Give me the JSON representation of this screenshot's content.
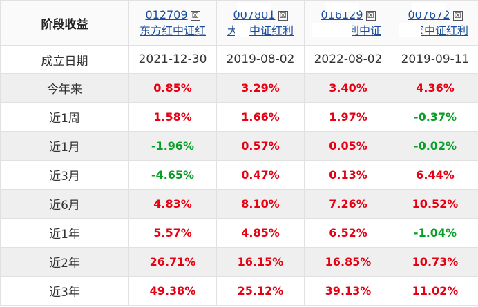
{
  "header_label": "阶段收益",
  "row_labels": {
    "founded": "成立日期",
    "ytd": "今年来",
    "w1": "近1周",
    "m1": "近1月",
    "m3": "近3月",
    "m6": "近6月",
    "y1": "近1年",
    "y2": "近2年",
    "y3": "近3年"
  },
  "funds": [
    {
      "code": "012709",
      "name": "东方红中证红",
      "close_icon": "☒",
      "founded": "2021-12-30",
      "ytd": "0.85%",
      "w1": "1.58%",
      "m1": "-1.96%",
      "m3": "-4.65%",
      "m6": "4.83%",
      "y1": "5.57%",
      "y2": "26.71%",
      "y3": "49.38%"
    },
    {
      "code": "007801",
      "name": "大成中证红利",
      "close_icon": "☒",
      "founded": "2019-08-02",
      "ytd": "3.29%",
      "w1": "1.66%",
      "m1": "0.57%",
      "m3": "0.47%",
      "m6": "8.10%",
      "y1": "4.85%",
      "y2": "16.15%",
      "y3": "25.12%"
    },
    {
      "code": "016129",
      "name": "银华富利中证",
      "close_icon": "☒",
      "founded": "2022-08-02",
      "ytd": "3.40%",
      "w1": "1.97%",
      "m1": "0.05%",
      "m3": "0.13%",
      "m6": "7.26%",
      "y1": "6.52%",
      "y2": "16.85%",
      "y3": "39.13%"
    },
    {
      "code": "007672",
      "name": "万家中证红利",
      "close_icon": "☒",
      "founded": "2019-09-11",
      "ytd": "4.36%",
      "w1": "-0.37%",
      "m1": "-0.02%",
      "m3": "6.44%",
      "m6": "10.52%",
      "y1": "-1.04%",
      "y2": "10.73%",
      "y3": "11.02%"
    }
  ],
  "colors": {
    "positive": "#e60012",
    "negative": "#079f25",
    "link": "#1c4e9c",
    "row_alt": "#efefef"
  }
}
